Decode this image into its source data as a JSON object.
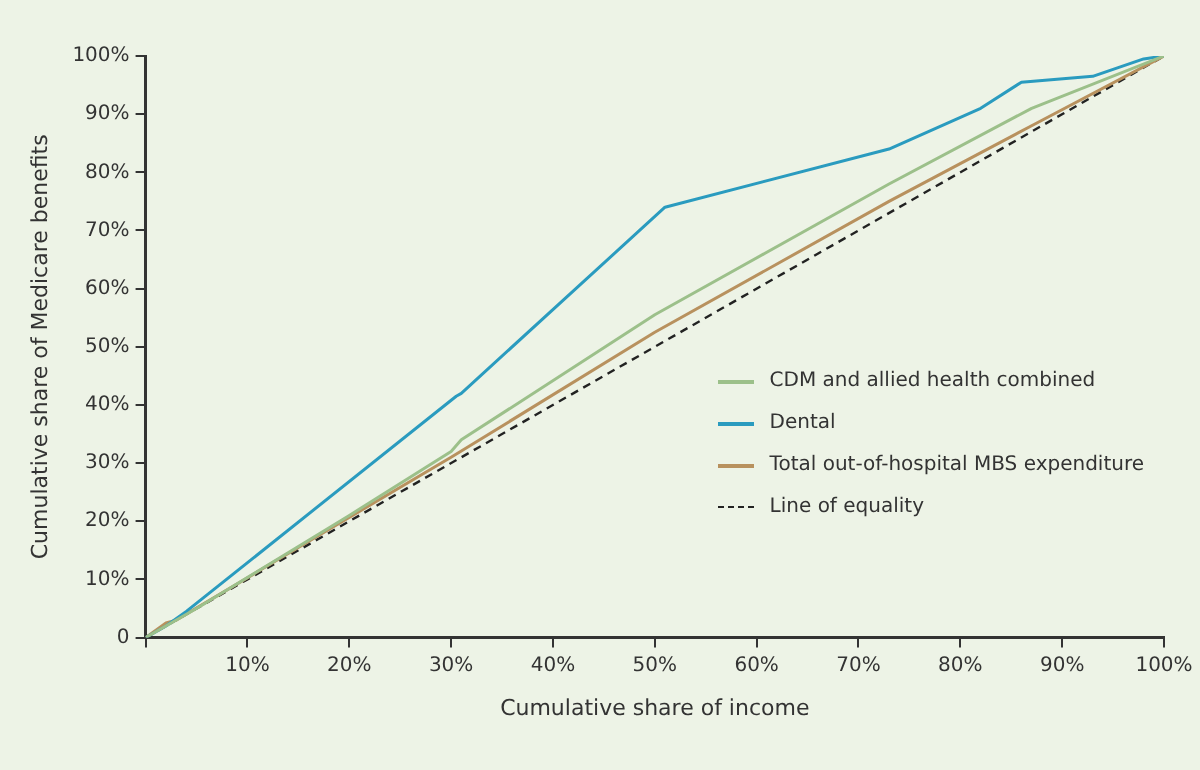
{
  "chart_data": {
    "type": "line",
    "xlabel": "Cumulative share of income",
    "ylabel": "Cumulative share of Medicare benefits",
    "xlim": [
      0,
      100
    ],
    "ylim": [
      0,
      100
    ],
    "xticks": [
      {
        "value": 0,
        "label": null
      },
      {
        "value": 10,
        "label": "10%"
      },
      {
        "value": 20,
        "label": "20%"
      },
      {
        "value": 30,
        "label": "30%"
      },
      {
        "value": 40,
        "label": "40%"
      },
      {
        "value": 50,
        "label": "50%"
      },
      {
        "value": 60,
        "label": "60%"
      },
      {
        "value": 70,
        "label": "70%"
      },
      {
        "value": 80,
        "label": "80%"
      },
      {
        "value": 90,
        "label": "90%"
      },
      {
        "value": 100,
        "label": "100%"
      }
    ],
    "yticks": [
      0,
      {
        "value": 10,
        "label": "10%"
      },
      {
        "value": 20,
        "label": "20%"
      },
      {
        "value": 30,
        "label": "30%"
      },
      {
        "value": 40,
        "label": "40%"
      },
      {
        "value": 50,
        "label": "50%"
      },
      {
        "value": 60,
        "label": "60%"
      },
      {
        "value": 70,
        "label": "70%"
      },
      {
        "value": 80,
        "label": "80%"
      },
      {
        "value": 90,
        "label": "90%"
      },
      {
        "value": 100,
        "label": "100%"
      }
    ],
    "grid": false,
    "legend": "right",
    "marker": "none",
    "series": [
      {
        "name": "CDM and allied health combined",
        "color": "#9cc08a",
        "x": [
          0,
          5,
          20,
          30,
          31,
          50,
          73,
          87,
          100
        ],
        "values": [
          0,
          5,
          21,
          32,
          34,
          55.5,
          78,
          91,
          100
        ]
      },
      {
        "name": "Dental",
        "color": "#2a9bbf",
        "x": [
          0,
          2,
          4,
          30.5,
          31,
          51,
          73,
          82,
          86,
          93,
          98,
          100
        ],
        "values": [
          0,
          2,
          4.5,
          41.5,
          42,
          74,
          84,
          91,
          95.5,
          96.5,
          99.5,
          100
        ]
      },
      {
        "name": "Total out-of-hospital MBS expenditure",
        "color": "#b8915e",
        "x": [
          0,
          2,
          3,
          15,
          30,
          50,
          73,
          87,
          100
        ],
        "values": [
          0,
          2.5,
          3,
          15.5,
          31,
          52.5,
          75,
          88,
          100
        ]
      },
      {
        "name": "Line of equality",
        "color": "#222222",
        "line_style": "dashed",
        "x": [
          0,
          100
        ],
        "values": [
          0,
          100
        ]
      }
    ]
  }
}
